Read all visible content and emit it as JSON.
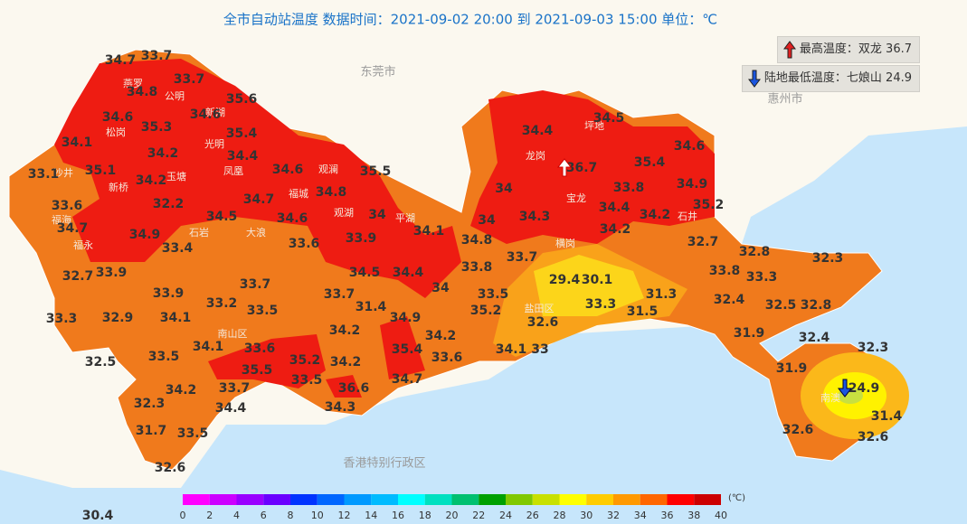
{
  "header": {
    "title": "全市自动站温度  数据时间：2021-09-02 20:00 到 2021-09-03 15:00  单位：℃"
  },
  "legend": [
    {
      "label": "最高温度：双龙 36.7"
    },
    {
      "label": "陆地最低温度：七娘山 24.9"
    }
  ],
  "cities": [
    "东莞市",
    "惠州市",
    "香港特别行政区"
  ],
  "places": [
    "燕罗",
    "公明",
    "新湖",
    "松岗",
    "光明",
    "玉塘",
    "凤凰",
    "沙井",
    "新桥",
    "福海",
    "福永",
    "石岩",
    "大浪",
    "福城",
    "观澜",
    "观湖",
    "平湖",
    "龙岗",
    "坪地",
    "宝龙",
    "石井",
    "横岗",
    "盐田区",
    "南山区",
    "南澳"
  ],
  "stations": [
    34.7,
    33.7,
    33.7,
    34.8,
    35.6,
    34.6,
    34.6,
    35.3,
    35.4,
    34.1,
    34.2,
    34.4,
    35.1,
    34.6,
    35.5,
    33.1,
    34.2,
    34.7,
    34.8,
    33.6,
    32.2,
    34.5,
    34.6,
    34,
    34.7,
    34.9,
    33.4,
    33.9,
    32.7,
    33.6,
    33.9,
    34.1,
    34.8,
    34,
    34.5,
    34.4,
    34,
    33.8,
    33.7,
    33.7,
    33.9,
    33.2,
    33.5,
    33.7,
    31.4,
    34.9,
    33.5,
    35.2,
    33.3,
    32.9,
    34.1,
    34.2,
    34.2,
    35.4,
    34.1,
    33.6,
    33.5,
    32.5,
    33.6,
    34.1,
    33,
    32.6,
    35.5,
    35.2,
    34.2,
    33.7,
    33.5,
    36.6,
    34.7,
    34.2,
    32.3,
    34.4,
    34.3,
    31.7,
    33.5,
    32.6,
    30.4,
    34.4,
    34.5,
    34.6,
    36.7,
    35.4,
    34,
    33.8,
    34.9,
    35.2,
    34.4,
    34.3,
    34.2,
    34.2,
    32.7,
    32.8,
    32.3,
    33.8,
    33.3,
    29.4,
    30.1,
    31.3,
    33.3,
    31.5,
    32.4,
    32.5,
    32.8,
    31.9,
    32.4,
    32.3,
    31.9,
    24.9,
    31.4,
    32.6,
    32.6
  ],
  "colorbar": {
    "colors": [
      "#ff00ff",
      "#cc00ff",
      "#9900ff",
      "#6a00ff",
      "#0033ff",
      "#0066ff",
      "#0099ff",
      "#00bbff",
      "#00ffff",
      "#00e0c0",
      "#00c070",
      "#00a000",
      "#80c800",
      "#c8e000",
      "#ffff00",
      "#ffcc00",
      "#ff9900",
      "#ff6600",
      "#ff0000",
      "#cc0000",
      "#990000"
    ],
    "ticks": [
      0,
      2,
      4,
      6,
      8,
      10,
      12,
      14,
      16,
      18,
      20,
      22,
      24,
      26,
      28,
      30,
      32,
      34,
      36,
      38,
      40
    ],
    "unit": "(℃)"
  }
}
